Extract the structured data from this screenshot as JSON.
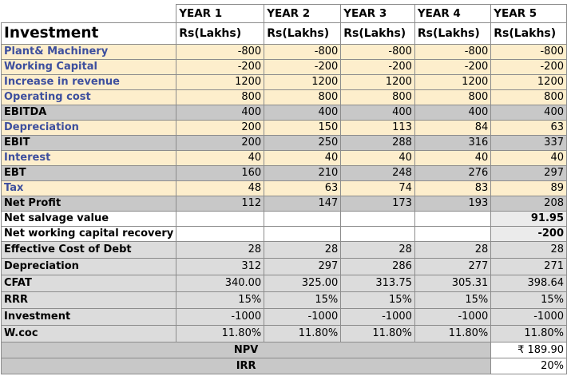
{
  "years": [
    "YEAR 1",
    "YEAR 2",
    "YEAR 3",
    "YEAR 4",
    "YEAR 5"
  ],
  "title": "Investment",
  "unit": "Rs(Lakhs)",
  "rows": [
    {
      "label": "Plant& Machinery",
      "values": [
        "-800",
        "-800",
        "-800",
        "-800",
        "-800"
      ]
    },
    {
      "label": "Working Capital",
      "values": [
        "-200",
        "-200",
        "-200",
        "-200",
        "-200"
      ]
    },
    {
      "label": "Increase in revenue",
      "values": [
        "1200",
        "1200",
        "1200",
        "1200",
        "1200"
      ]
    },
    {
      "label": "Operating cost",
      "values": [
        "800",
        "800",
        "800",
        "800",
        "800"
      ]
    },
    {
      "label": "EBITDA",
      "values": [
        "400",
        "400",
        "400",
        "400",
        "400"
      ]
    },
    {
      "label": "Depreciation",
      "values": [
        "200",
        "150",
        "113",
        "84",
        "63"
      ]
    },
    {
      "label": "EBIT",
      "values": [
        "200",
        "250",
        "288",
        "316",
        "337"
      ]
    },
    {
      "label": "Interest",
      "values": [
        "40",
        "40",
        "40",
        "40",
        "40"
      ]
    },
    {
      "label": "EBT",
      "values": [
        "160",
        "210",
        "248",
        "276",
        "297"
      ]
    },
    {
      "label": "Tax",
      "values": [
        "48",
        "63",
        "74",
        "83",
        "89"
      ]
    },
    {
      "label": "Net Profit",
      "values": [
        "112",
        "147",
        "173",
        "193",
        "208"
      ]
    },
    {
      "label": "Net salvage value",
      "values": [
        "",
        "",
        "",
        "",
        "91.95"
      ]
    },
    {
      "label": "Net working capital recovery",
      "values": [
        "",
        "",
        "",
        "",
        "-200"
      ]
    },
    {
      "label": "Effective Cost of Debt",
      "values": [
        "28",
        "28",
        "28",
        "28",
        "28"
      ]
    },
    {
      "label": "Depreciation",
      "values": [
        "312",
        "297",
        "286",
        "277",
        "271"
      ]
    },
    {
      "label": "CFAT",
      "values": [
        "340.00",
        "325.00",
        "313.75",
        "305.31",
        "398.64"
      ]
    },
    {
      "label": "RRR",
      "values": [
        "15%",
        "15%",
        "15%",
        "15%",
        "15%"
      ]
    },
    {
      "label": "Investment",
      "values": [
        "-1000",
        "-1000",
        "-1000",
        "-1000",
        "-1000"
      ]
    },
    {
      "label": "W.coc",
      "values": [
        "11.80%",
        "11.80%",
        "11.80%",
        "11.80%",
        "11.80%"
      ]
    }
  ],
  "summary": [
    {
      "label": "NPV",
      "value": "₹ 189.90"
    },
    {
      "label": "IRR",
      "value": "20%"
    }
  ]
}
